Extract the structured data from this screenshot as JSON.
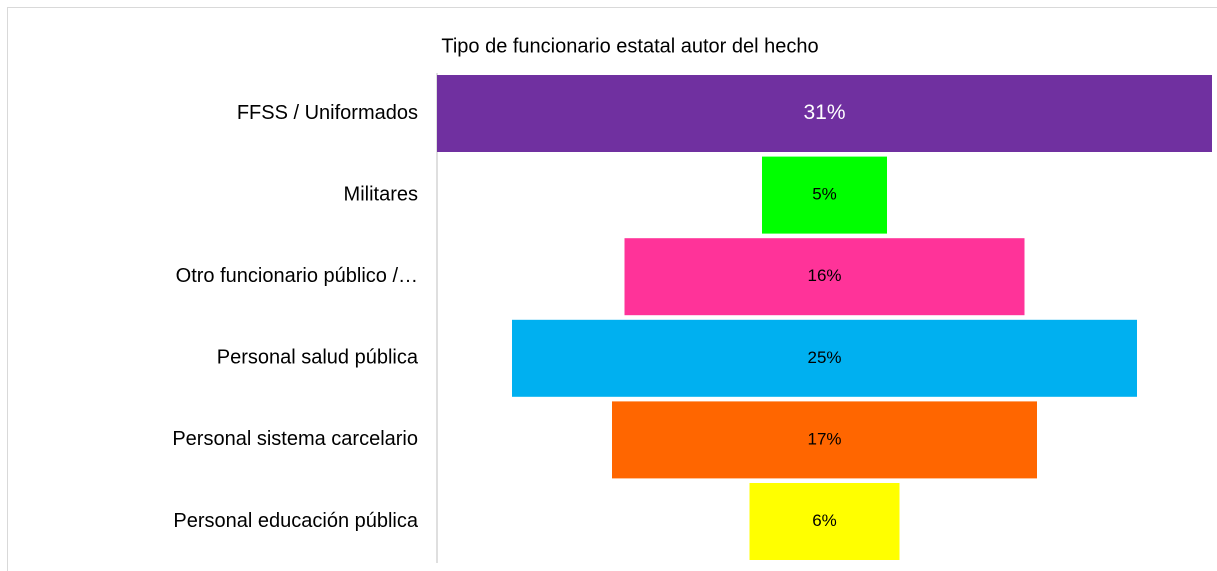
{
  "chart_data": {
    "type": "funnel",
    "title": "Tipo de funcionario estatal autor del hecho",
    "categories": [
      "FFSS / Uniformados",
      "Militares",
      "Otro funcionario público /…",
      "Personal salud pública",
      "Personal sistema carcelario",
      "Personal educación pública"
    ],
    "values": [
      31,
      5,
      16,
      25,
      17,
      6
    ],
    "value_labels": [
      "31%",
      "5%",
      "16%",
      "25%",
      "17%",
      "6%"
    ],
    "colors": [
      "#7030a0",
      "#00ff00",
      "#ff3399",
      "#00b0f0",
      "#ff6600",
      "#ffff00"
    ]
  }
}
